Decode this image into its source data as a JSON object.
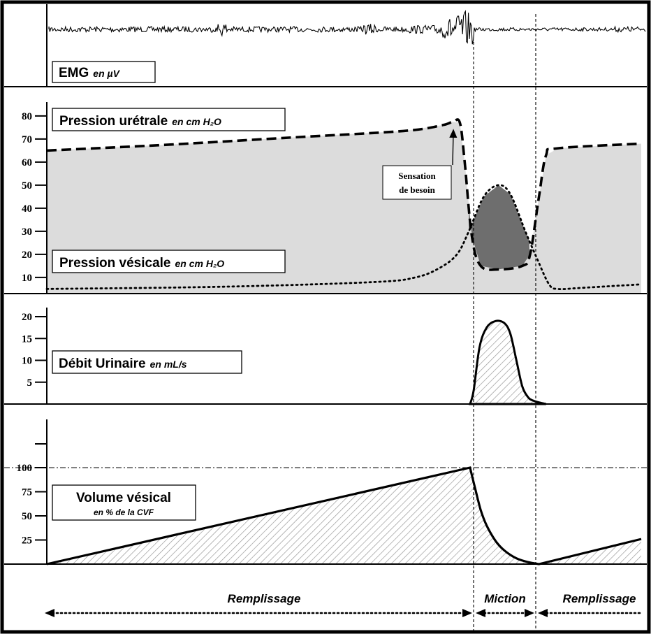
{
  "chart_data": [
    {
      "type": "line",
      "panel": "emg",
      "title": "EMG",
      "unit": "en µV",
      "x_phases": [
        "Remplissage",
        "Miction",
        "Remplissage"
      ]
    },
    {
      "type": "line",
      "panel": "pressions",
      "yticks": [
        10,
        20,
        30,
        40,
        50,
        60,
        70,
        80
      ],
      "series": [
        {
          "name": "Pression urétrale",
          "unit": "en cm H₂O",
          "style": "dashed",
          "x": [
            0,
            20,
            40,
            60,
            66.5,
            68.3,
            69.5,
            70.3,
            71.5,
            73,
            76,
            80,
            81.3,
            82.8,
            84,
            86,
            100
          ],
          "y": [
            65,
            67.5,
            70.5,
            73.5,
            76,
            77.5,
            77,
            60,
            28,
            15,
            13.5,
            15,
            20,
            45,
            63,
            66,
            68
          ]
        },
        {
          "name": "Pression vésicale",
          "unit": "en cm H₂O",
          "style": "dotted",
          "x": [
            0,
            30,
            55,
            62,
            66,
            69,
            71,
            73.5,
            76,
            78,
            80.5,
            82.5,
            84.5,
            86,
            90,
            100
          ],
          "y": [
            5,
            6,
            8,
            10,
            14,
            20,
            30,
            45,
            50,
            46,
            30,
            18,
            7,
            5,
            5.5,
            7
          ]
        }
      ],
      "annotation": [
        "Sensation",
        "de besoin"
      ]
    },
    {
      "type": "area",
      "panel": "debit",
      "title": "Débit Urinaire",
      "unit": "en mL/s",
      "yticks": [
        5,
        10,
        15,
        20
      ],
      "x": [
        71.2,
        71.8,
        72.8,
        74,
        75.5,
        77,
        78,
        79,
        80,
        81,
        81.8,
        83,
        84
      ],
      "y": [
        0,
        3,
        13,
        17.5,
        19,
        18.5,
        16,
        10,
        4,
        1.5,
        0.8,
        0.3,
        0
      ]
    },
    {
      "type": "area",
      "panel": "volume",
      "title": "Volume vésical",
      "unit": "en % de la CVF",
      "yticks": [
        25,
        50,
        75,
        100
      ],
      "x": [
        0,
        71.2,
        72,
        73,
        74,
        75.5,
        77,
        79,
        81,
        82.8,
        100
      ],
      "y": [
        0,
        100,
        80,
        56,
        40,
        24,
        14,
        6,
        2,
        0,
        26
      ]
    }
  ]
}
